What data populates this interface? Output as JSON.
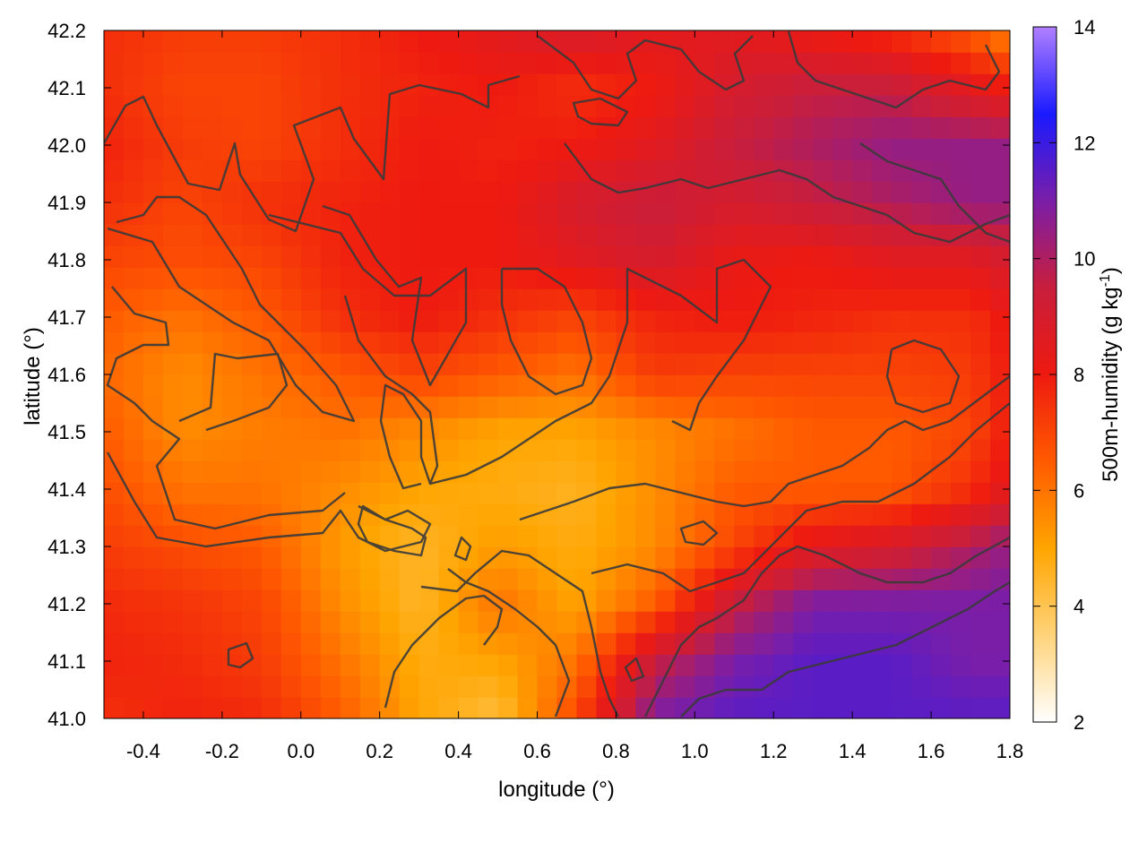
{
  "chart_data": {
    "type": "heatmap",
    "title": "",
    "xlabel": "longitude (°)",
    "ylabel": "latitude (°)",
    "colorbar_label": "500m-humidity (g kg",
    "colorbar_label_sup": "-1",
    "colorbar_label_end": ")",
    "xlim": [
      -0.5,
      1.8
    ],
    "ylim": [
      41.0,
      42.2
    ],
    "zlim": [
      2,
      14
    ],
    "x_ticks": [
      "-0.4",
      "-0.2",
      "0.0",
      "0.2",
      "0.4",
      "0.6",
      "0.8",
      "1.0",
      "1.2",
      "1.4",
      "1.6",
      "1.8"
    ],
    "x_tick_values": [
      -0.4,
      -0.2,
      0.0,
      0.2,
      0.4,
      0.6,
      0.8,
      1.0,
      1.2,
      1.4,
      1.6,
      1.8
    ],
    "y_ticks": [
      "41.0",
      "41.1",
      "41.2",
      "41.3",
      "41.4",
      "41.5",
      "41.6",
      "41.7",
      "41.8",
      "41.9",
      "42.0",
      "42.1",
      "42.2"
    ],
    "y_tick_values": [
      41.0,
      41.1,
      41.2,
      41.3,
      41.4,
      41.5,
      41.6,
      41.7,
      41.8,
      41.9,
      42.0,
      42.1,
      42.2
    ],
    "cb_ticks": [
      "2",
      "4",
      "6",
      "8",
      "10",
      "12",
      "14"
    ],
    "cb_tick_values": [
      2,
      4,
      6,
      8,
      10,
      12,
      14
    ],
    "colormap": [
      "#ffffff",
      "#ffd37a",
      "#ffa500",
      "#ff5a00",
      "#ee1a10",
      "#c81e3c",
      "#7a1ea8",
      "#1a1aff",
      "#b080ff"
    ],
    "contour_color": "#3a3a3a",
    "regions_note": "",
    "field": {
      "x": [
        -0.5,
        -0.3,
        -0.1,
        0.1,
        0.3,
        0.5,
        0.7,
        0.9,
        1.1,
        1.3,
        1.5,
        1.7,
        1.8
      ],
      "y": [
        41.0,
        41.1,
        41.2,
        41.3,
        41.4,
        41.5,
        41.6,
        41.7,
        41.8,
        41.9,
        42.0,
        42.1,
        42.2
      ],
      "z": [
        [
          7.5,
          7.8,
          7.6,
          6.5,
          5.0,
          4.2,
          7.0,
          11.0,
          11.5,
          11.5,
          11.5,
          11.5,
          11.5
        ],
        [
          7.8,
          7.6,
          7.2,
          6.0,
          4.8,
          5.0,
          6.0,
          9.5,
          11.0,
          11.5,
          11.5,
          11.0,
          11.0
        ],
        [
          7.6,
          7.4,
          7.0,
          5.5,
          4.5,
          6.0,
          5.0,
          6.5,
          9.5,
          11.0,
          11.0,
          11.0,
          11.0
        ],
        [
          7.2,
          6.8,
          6.5,
          5.2,
          4.5,
          5.2,
          4.8,
          5.5,
          7.0,
          8.5,
          9.0,
          10.0,
          10.5
        ],
        [
          6.8,
          6.0,
          6.0,
          5.5,
          5.0,
          4.8,
          4.6,
          5.5,
          6.5,
          6.5,
          6.5,
          7.5,
          8.5
        ],
        [
          6.5,
          5.5,
          5.8,
          6.0,
          5.5,
          5.0,
          5.0,
          5.5,
          6.0,
          6.5,
          6.5,
          7.0,
          8.0
        ],
        [
          6.2,
          5.5,
          6.0,
          6.5,
          7.0,
          6.5,
          6.0,
          7.2,
          7.0,
          7.0,
          7.0,
          7.2,
          8.0
        ],
        [
          6.5,
          6.0,
          6.5,
          7.5,
          8.0,
          7.5,
          7.0,
          7.8,
          8.0,
          7.8,
          7.5,
          7.5,
          8.2
        ],
        [
          7.0,
          6.8,
          7.0,
          7.8,
          8.0,
          8.0,
          8.5,
          9.0,
          8.2,
          8.0,
          8.5,
          8.5,
          9.0
        ],
        [
          7.5,
          7.0,
          7.5,
          7.8,
          8.0,
          8.0,
          9.0,
          9.5,
          9.0,
          9.5,
          10.0,
          10.5,
          10.5
        ],
        [
          7.8,
          7.2,
          7.0,
          7.5,
          8.0,
          7.8,
          8.0,
          8.5,
          9.5,
          10.0,
          10.5,
          10.5,
          10.5
        ],
        [
          7.5,
          7.0,
          7.0,
          7.5,
          7.8,
          8.0,
          7.5,
          8.0,
          9.0,
          9.5,
          9.5,
          8.5,
          8.0
        ],
        [
          7.5,
          7.2,
          7.2,
          7.5,
          8.0,
          8.5,
          9.0,
          8.5,
          8.5,
          8.0,
          7.5,
          6.5,
          5.5
        ]
      ]
    }
  }
}
